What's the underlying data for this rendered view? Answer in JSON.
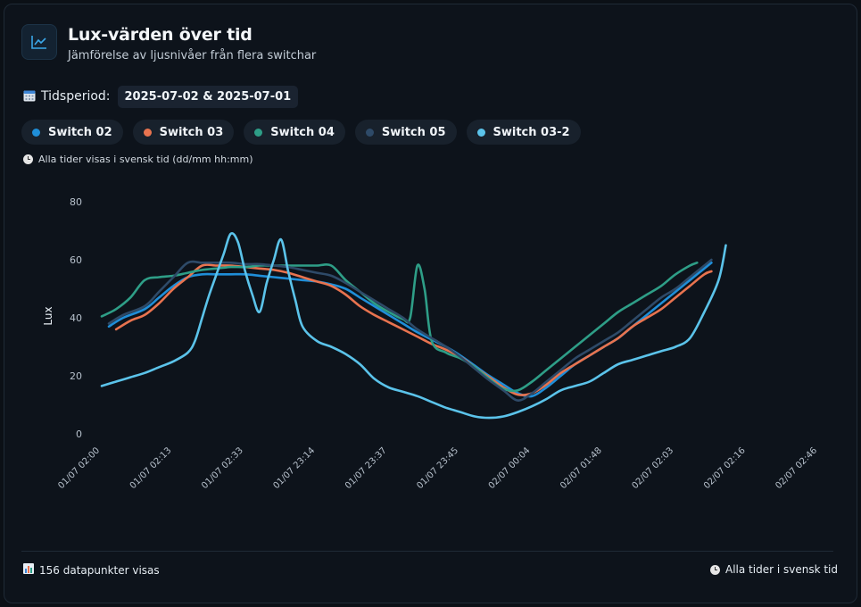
{
  "header": {
    "icon": "line-chart-icon",
    "title": "Lux-värden över tid",
    "subtitle": "Jämförelse av ljusnivåer från flera switchar"
  },
  "period": {
    "icon": "calendar-icon",
    "label": "Tidsperiod:",
    "value": "2025-07-02 & 2025-07-01"
  },
  "legend": [
    {
      "name": "Switch 02",
      "color": "#1f8ed8"
    },
    {
      "name": "Switch 03",
      "color": "#e8734f"
    },
    {
      "name": "Switch 04",
      "color": "#2e9e87"
    },
    {
      "name": "Switch 05",
      "color": "#2e4a68"
    },
    {
      "name": "Switch 03-2",
      "color": "#5bc3ea"
    }
  ],
  "note": "Alla tider visas i svensk tid (dd/mm hh:mm)",
  "footer": {
    "points_text": "156 datapunkter visas",
    "timezone_text": "Alla tider i svensk tid"
  },
  "chart_data": {
    "type": "line",
    "title": "Lux-värden över tid",
    "xlabel": "",
    "ylabel": "Lux",
    "ylim": [
      0,
      80
    ],
    "yticks": [
      0,
      20,
      40,
      60,
      80
    ],
    "grid": false,
    "xdomain": [
      0,
      100
    ],
    "xticks": [
      {
        "pos": 0,
        "label": "01/07 02:00"
      },
      {
        "pos": 10,
        "label": "01/07 02:13"
      },
      {
        "pos": 20,
        "label": "01/07 02:33"
      },
      {
        "pos": 30,
        "label": "01/07 23:14"
      },
      {
        "pos": 40,
        "label": "01/07 23:37"
      },
      {
        "pos": 50,
        "label": "01/07 23:45"
      },
      {
        "pos": 60,
        "label": "02/07 00:04"
      },
      {
        "pos": 70,
        "label": "02/07 01:48"
      },
      {
        "pos": 80,
        "label": "02/07 02:03"
      },
      {
        "pos": 90,
        "label": "02/07 02:16"
      },
      {
        "pos": 100,
        "label": "02/07 02:46"
      }
    ],
    "series": [
      {
        "name": "Switch 02",
        "color": "#1f8ed8",
        "points": [
          [
            1,
            37
          ],
          [
            3,
            40
          ],
          [
            6,
            43
          ],
          [
            8,
            47
          ],
          [
            10,
            51
          ],
          [
            12,
            54
          ],
          [
            14,
            55
          ],
          [
            16,
            55
          ],
          [
            18,
            55
          ],
          [
            20,
            55
          ],
          [
            22,
            54.5
          ],
          [
            24,
            54
          ],
          [
            26,
            53.5
          ],
          [
            28,
            53
          ],
          [
            30,
            52.5
          ],
          [
            32,
            51.5
          ],
          [
            34,
            50
          ],
          [
            36,
            47
          ],
          [
            38,
            44
          ],
          [
            40,
            41
          ],
          [
            42,
            38
          ],
          [
            44,
            35
          ],
          [
            46,
            32.5
          ],
          [
            48,
            30
          ],
          [
            50,
            27
          ],
          [
            52,
            23.5
          ],
          [
            54,
            20
          ],
          [
            56,
            17
          ],
          [
            58,
            14
          ],
          [
            60,
            13
          ],
          [
            62,
            16
          ],
          [
            64,
            20
          ],
          [
            66,
            24
          ],
          [
            68,
            27
          ],
          [
            70,
            30
          ],
          [
            72,
            33
          ],
          [
            74,
            37
          ],
          [
            76,
            41
          ],
          [
            78,
            45
          ],
          [
            80,
            49
          ],
          [
            82,
            53
          ],
          [
            84,
            57
          ],
          [
            85,
            59
          ]
        ]
      },
      {
        "name": "Switch 03",
        "color": "#e8734f",
        "points": [
          [
            2,
            36
          ],
          [
            4,
            39
          ],
          [
            6,
            41
          ],
          [
            8,
            45
          ],
          [
            10,
            50
          ],
          [
            12,
            54
          ],
          [
            14,
            58
          ],
          [
            16,
            58
          ],
          [
            18,
            58
          ],
          [
            20,
            57.5
          ],
          [
            22,
            57
          ],
          [
            24,
            56.5
          ],
          [
            26,
            55.5
          ],
          [
            28,
            54
          ],
          [
            30,
            52.5
          ],
          [
            32,
            51
          ],
          [
            34,
            48
          ],
          [
            36,
            44
          ],
          [
            38,
            41
          ],
          [
            40,
            38.5
          ],
          [
            42,
            36
          ],
          [
            44,
            33.5
          ],
          [
            46,
            31
          ],
          [
            48,
            29
          ],
          [
            50,
            26.5
          ],
          [
            52,
            23
          ],
          [
            54,
            19.5
          ],
          [
            56,
            16
          ],
          [
            58,
            13.5
          ],
          [
            60,
            14
          ],
          [
            62,
            17
          ],
          [
            64,
            21
          ],
          [
            66,
            24
          ],
          [
            68,
            27
          ],
          [
            70,
            30
          ],
          [
            72,
            33
          ],
          [
            74,
            37
          ],
          [
            76,
            40
          ],
          [
            78,
            43
          ],
          [
            80,
            47
          ],
          [
            82,
            51
          ],
          [
            84,
            55
          ],
          [
            85,
            56
          ]
        ]
      },
      {
        "name": "Switch 04",
        "color": "#2e9e87",
        "points": [
          [
            0,
            40.5
          ],
          [
            2,
            43
          ],
          [
            4,
            47
          ],
          [
            6,
            53
          ],
          [
            8,
            54
          ],
          [
            10,
            54.5
          ],
          [
            12,
            55.5
          ],
          [
            14,
            56.5
          ],
          [
            16,
            57
          ],
          [
            18,
            57.5
          ],
          [
            20,
            57.5
          ],
          [
            22,
            58
          ],
          [
            24,
            58
          ],
          [
            26,
            58
          ],
          [
            28,
            58
          ],
          [
            30,
            58
          ],
          [
            32,
            58
          ],
          [
            34,
            53
          ],
          [
            36,
            49
          ],
          [
            38,
            45
          ],
          [
            40,
            42
          ],
          [
            42,
            39.5
          ],
          [
            43,
            40
          ],
          [
            44,
            58
          ],
          [
            45,
            50
          ],
          [
            46,
            32
          ],
          [
            48,
            28
          ],
          [
            50,
            26
          ],
          [
            52,
            23
          ],
          [
            54,
            19
          ],
          [
            56,
            15.5
          ],
          [
            58,
            15
          ],
          [
            60,
            18
          ],
          [
            62,
            22
          ],
          [
            64,
            26
          ],
          [
            66,
            30
          ],
          [
            68,
            34
          ],
          [
            70,
            38
          ],
          [
            72,
            42
          ],
          [
            74,
            45
          ],
          [
            76,
            48
          ],
          [
            78,
            51
          ],
          [
            80,
            55
          ],
          [
            82,
            58
          ],
          [
            83,
            59
          ]
        ]
      },
      {
        "name": "Switch 05",
        "color": "#2e4a68",
        "points": [
          [
            1,
            38
          ],
          [
            3,
            41
          ],
          [
            6,
            44
          ],
          [
            8,
            49
          ],
          [
            10,
            54
          ],
          [
            12,
            59
          ],
          [
            14,
            59
          ],
          [
            16,
            59
          ],
          [
            18,
            59
          ],
          [
            20,
            58.5
          ],
          [
            22,
            58.5
          ],
          [
            24,
            58
          ],
          [
            26,
            57.5
          ],
          [
            28,
            56.5
          ],
          [
            30,
            55.5
          ],
          [
            32,
            54.5
          ],
          [
            34,
            52
          ],
          [
            36,
            49
          ],
          [
            38,
            46
          ],
          [
            40,
            43
          ],
          [
            42,
            40
          ],
          [
            44,
            36
          ],
          [
            46,
            33
          ],
          [
            48,
            30
          ],
          [
            50,
            26.5
          ],
          [
            52,
            22.5
          ],
          [
            54,
            18.5
          ],
          [
            56,
            15
          ],
          [
            58,
            11.5
          ],
          [
            60,
            14
          ],
          [
            62,
            18
          ],
          [
            64,
            22
          ],
          [
            66,
            26
          ],
          [
            68,
            29
          ],
          [
            70,
            32
          ],
          [
            72,
            35
          ],
          [
            74,
            39
          ],
          [
            76,
            43
          ],
          [
            78,
            47
          ],
          [
            80,
            50
          ],
          [
            82,
            54
          ],
          [
            84,
            58
          ],
          [
            85,
            60
          ]
        ]
      },
      {
        "name": "Switch 03-2",
        "color": "#5bc3ea",
        "points": [
          [
            0,
            16.5
          ],
          [
            2,
            18
          ],
          [
            4,
            19.5
          ],
          [
            6,
            21
          ],
          [
            8,
            23
          ],
          [
            10,
            25
          ],
          [
            12,
            28
          ],
          [
            13,
            32
          ],
          [
            14,
            40
          ],
          [
            15,
            48
          ],
          [
            16,
            55
          ],
          [
            17,
            62
          ],
          [
            18,
            69
          ],
          [
            19,
            66
          ],
          [
            20,
            56
          ],
          [
            21,
            48
          ],
          [
            22,
            42
          ],
          [
            23,
            52
          ],
          [
            24,
            60
          ],
          [
            25,
            67
          ],
          [
            26,
            56
          ],
          [
            27,
            46
          ],
          [
            28,
            37
          ],
          [
            30,
            32
          ],
          [
            32,
            30
          ],
          [
            34,
            27.5
          ],
          [
            36,
            24
          ],
          [
            38,
            19
          ],
          [
            40,
            16
          ],
          [
            42,
            14.5
          ],
          [
            44,
            13
          ],
          [
            46,
            11
          ],
          [
            48,
            9
          ],
          [
            50,
            7.5
          ],
          [
            52,
            6
          ],
          [
            54,
            5.5
          ],
          [
            56,
            6
          ],
          [
            58,
            7.5
          ],
          [
            60,
            9.5
          ],
          [
            62,
            12
          ],
          [
            64,
            15
          ],
          [
            66,
            16.5
          ],
          [
            68,
            18
          ],
          [
            70,
            21
          ],
          [
            72,
            24
          ],
          [
            74,
            25.5
          ],
          [
            76,
            27
          ],
          [
            78,
            28.5
          ],
          [
            80,
            30
          ],
          [
            82,
            33
          ],
          [
            84,
            42
          ],
          [
            86,
            53
          ],
          [
            87,
            65
          ]
        ]
      }
    ]
  }
}
